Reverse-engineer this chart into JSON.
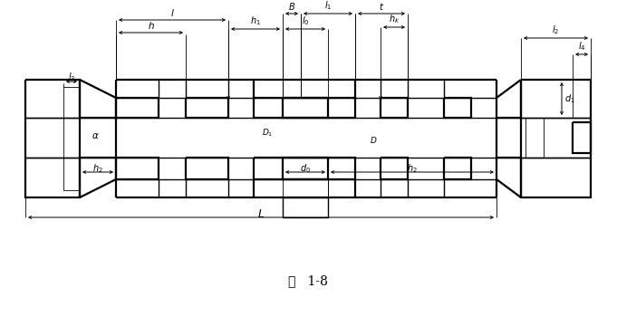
{
  "fig_label": "图   1-8",
  "bg_color": "#ffffff",
  "lw_thick": 1.6,
  "lw_med": 1.0,
  "lw_thin": 0.6,
  "lw_dim": 0.7,
  "fig_width": 6.81,
  "fig_height": 3.5,
  "dpi": 100
}
